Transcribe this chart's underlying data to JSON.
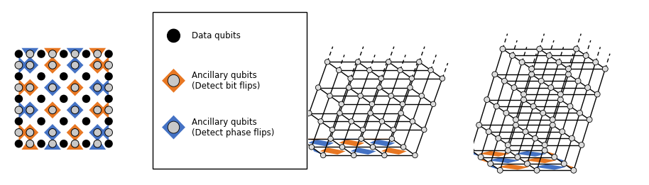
{
  "orange_color": "#E87722",
  "blue_color": "#4472C4",
  "black_color": "#000000",
  "white_color": "#FFFFFF",
  "gray_color": "#C8C8C8",
  "bg_color": "#FFFFFF",
  "legend_text1": "Data qubits",
  "legend_text2": "Ancillary qubits\n(Detect bit flips)",
  "legend_text3": "Ancillary qubits\n(Detect phase flips)",
  "figsize": [
    9.14,
    2.61
  ],
  "dpi": 100
}
